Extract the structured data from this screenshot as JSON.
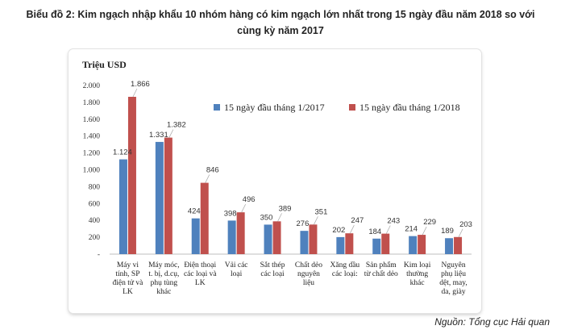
{
  "title_lines": [
    "Biểu đồ 2: Kim ngạch nhập khẩu 10 nhóm hàng có kim ngạch lớn nhất trong 15 ngày đầu năm 2018 so với",
    "cùng kỳ năm 2017"
  ],
  "source": "Nguồn: Tổng cục Hải quan",
  "colors": {
    "series_2017": "#4f81bd",
    "series_2018": "#c0504d"
  },
  "chart_data": {
    "type": "bar",
    "ylabel": "Triệu USD",
    "ylim": [
      0,
      2000
    ],
    "yticks": [
      0,
      200,
      400,
      600,
      800,
      1000,
      1200,
      1400,
      1600,
      1800,
      2000
    ],
    "ytick_labels": [
      "-",
      "200",
      "400",
      "600",
      "800",
      "1.000",
      "1.200",
      "1.400",
      "1.600",
      "1.800",
      "2.000"
    ],
    "legend_position": "top-right",
    "grid": false,
    "categories": [
      [
        "Máy vi",
        "tính, SP",
        "điện tử và",
        "LK"
      ],
      [
        "Máy móc,",
        "t. bị, d.cụ,",
        "phụ tùng",
        "khác"
      ],
      [
        "Điện thoại",
        "các loại và",
        "LK"
      ],
      [
        "Vải các",
        "loại"
      ],
      [
        "Sắt thép",
        "các loại"
      ],
      [
        "Chất dẻo",
        "nguyên",
        "liệu"
      ],
      [
        "Xăng dầu",
        "các loại:"
      ],
      [
        "Sản phẩm",
        "từ chất dẻo"
      ],
      [
        "Kim loại",
        "thường",
        "khác"
      ],
      [
        "Nguyên",
        "phụ liệu",
        "dệt, may,",
        "da, giày"
      ]
    ],
    "series": [
      {
        "name": "15 ngày đầu tháng 1/2017",
        "values": [
          1124,
          1331,
          424,
          398,
          350,
          276,
          202,
          184,
          214,
          189
        ],
        "labels": [
          "1.124",
          "1.331",
          "424",
          "398",
          "350",
          "276",
          "202",
          "184",
          "214",
          "189"
        ]
      },
      {
        "name": "15 ngày đầu tháng 1/2018",
        "values": [
          1866,
          1382,
          846,
          496,
          389,
          351,
          247,
          243,
          229,
          203
        ],
        "labels": [
          "1.866",
          "1.382",
          "846",
          "496",
          "389",
          "351",
          "247",
          "243",
          "229",
          "203"
        ]
      }
    ]
  }
}
